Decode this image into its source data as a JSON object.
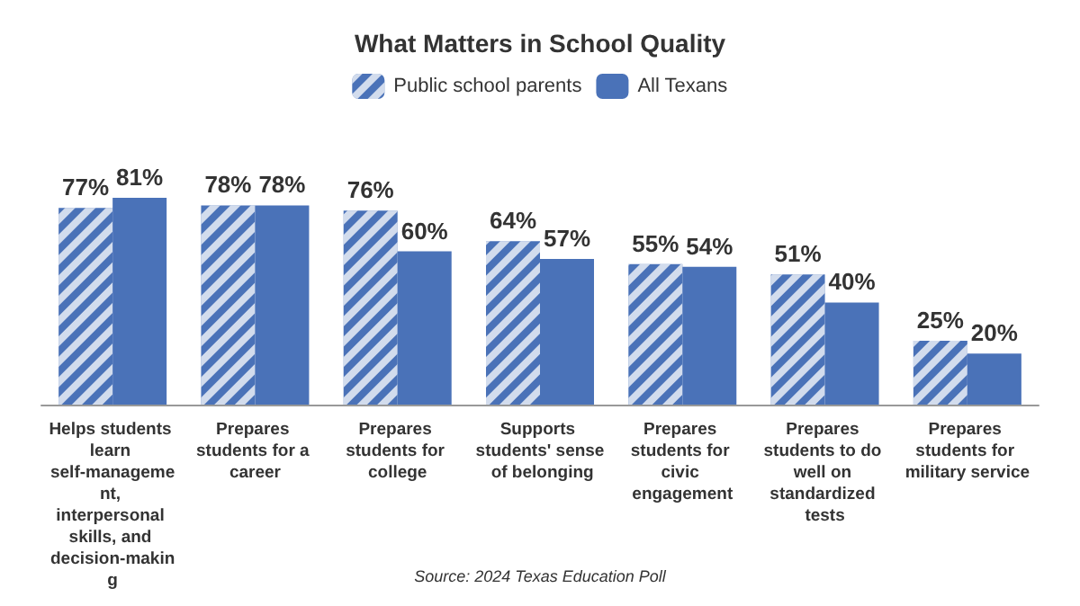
{
  "chart_data": {
    "type": "bar",
    "title": "What Matters in School Quality",
    "categories": [
      "Helps students learn self-management, interpersonal skills, and decision-making",
      "Prepares students for a career",
      "Prepares students for college",
      "Supports students' sense of belonging",
      "Prepares students for civic engagement",
      "Prepares students to do well on standardized tests",
      "Prepares students for military service"
    ],
    "series": [
      {
        "name": "Public school parents",
        "color": "#4a72b8",
        "values": [
          77,
          78,
          76,
          64,
          55,
          51,
          25
        ],
        "value_labels": [
          "77%",
          "78%",
          "76%",
          "64%",
          "55%",
          "51%",
          "25%"
        ]
      },
      {
        "name": "All Texans",
        "color": "#4a72b8",
        "values": [
          81,
          78,
          60,
          57,
          54,
          40,
          20
        ],
        "value_labels": [
          "81%",
          "78%",
          "60%",
          "57%",
          "54%",
          "40%",
          "20%"
        ]
      }
    ],
    "legend": "top",
    "annotations": [
      "Source: 2024 Texas Education Poll"
    ]
  }
}
